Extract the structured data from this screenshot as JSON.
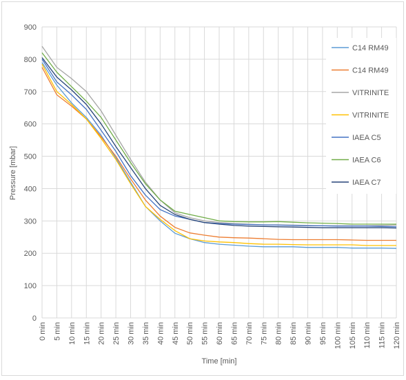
{
  "chart_data": {
    "type": "line",
    "title": "",
    "xlabel": "Time [min]",
    "ylabel": "Pressure [mbar]",
    "ylim": [
      0,
      900
    ],
    "yticks": [
      0,
      100,
      200,
      300,
      400,
      500,
      600,
      700,
      800,
      900
    ],
    "grid": true,
    "legend_position": "right",
    "categories": [
      "0 min",
      "5 min",
      "10 min",
      "15 min",
      "20 min",
      "25 min",
      "30 min",
      "35 min",
      "40 min",
      "45 min",
      "50 min",
      "55 min",
      "60 min",
      "65 min",
      "70 min",
      "75 min",
      "80 min",
      "85 min",
      "90 min",
      "95 min",
      "100 min",
      "105 min",
      "110 min",
      "115 min",
      "120 min"
    ],
    "series": [
      {
        "name": "C14 RM49",
        "color": "#5b9bd5",
        "values": [
          790,
          720,
          665,
          620,
          565,
          495,
          420,
          345,
          300,
          262,
          245,
          233,
          228,
          225,
          222,
          220,
          220,
          220,
          218,
          218,
          218,
          216,
          216,
          216,
          215
        ]
      },
      {
        "name": "C14 RM49",
        "color": "#ed7d31",
        "values": [
          775,
          690,
          655,
          615,
          560,
          500,
          430,
          365,
          315,
          280,
          263,
          256,
          250,
          248,
          247,
          245,
          243,
          242,
          242,
          242,
          242,
          241,
          240,
          240,
          240
        ]
      },
      {
        "name": "VITRINITE",
        "color": "#a5a5a5",
        "values": [
          840,
          775,
          740,
          700,
          640,
          565,
          490,
          420,
          365,
          325,
          310,
          300,
          295,
          292,
          290,
          288,
          288,
          287,
          286,
          285,
          285,
          285,
          285,
          286,
          287
        ]
      },
      {
        "name": "VITRINITE",
        "color": "#ffc000",
        "values": [
          785,
          700,
          660,
          615,
          555,
          490,
          415,
          345,
          305,
          270,
          245,
          238,
          235,
          233,
          230,
          228,
          228,
          227,
          226,
          226,
          226,
          226,
          224,
          224,
          224
        ]
      },
      {
        "name": "IAEA C5",
        "color": "#4472c4",
        "values": [
          800,
          730,
          690,
          645,
          580,
          515,
          440,
          380,
          335,
          315,
          305,
          295,
          292,
          290,
          289,
          288,
          287,
          286,
          285,
          285,
          284,
          284,
          284,
          283,
          282
        ]
      },
      {
        "name": "IAEA C6",
        "color": "#70ad47",
        "values": [
          820,
          760,
          715,
          670,
          620,
          550,
          480,
          415,
          365,
          330,
          320,
          310,
          300,
          298,
          297,
          297,
          298,
          296,
          294,
          293,
          292,
          290,
          290,
          290,
          290
        ]
      },
      {
        "name": "IAEA C7",
        "color": "#264478",
        "values": [
          805,
          745,
          705,
          660,
          600,
          530,
          465,
          400,
          348,
          320,
          305,
          295,
          290,
          286,
          284,
          283,
          282,
          281,
          280,
          279,
          279,
          279,
          279,
          279,
          278
        ]
      }
    ]
  }
}
